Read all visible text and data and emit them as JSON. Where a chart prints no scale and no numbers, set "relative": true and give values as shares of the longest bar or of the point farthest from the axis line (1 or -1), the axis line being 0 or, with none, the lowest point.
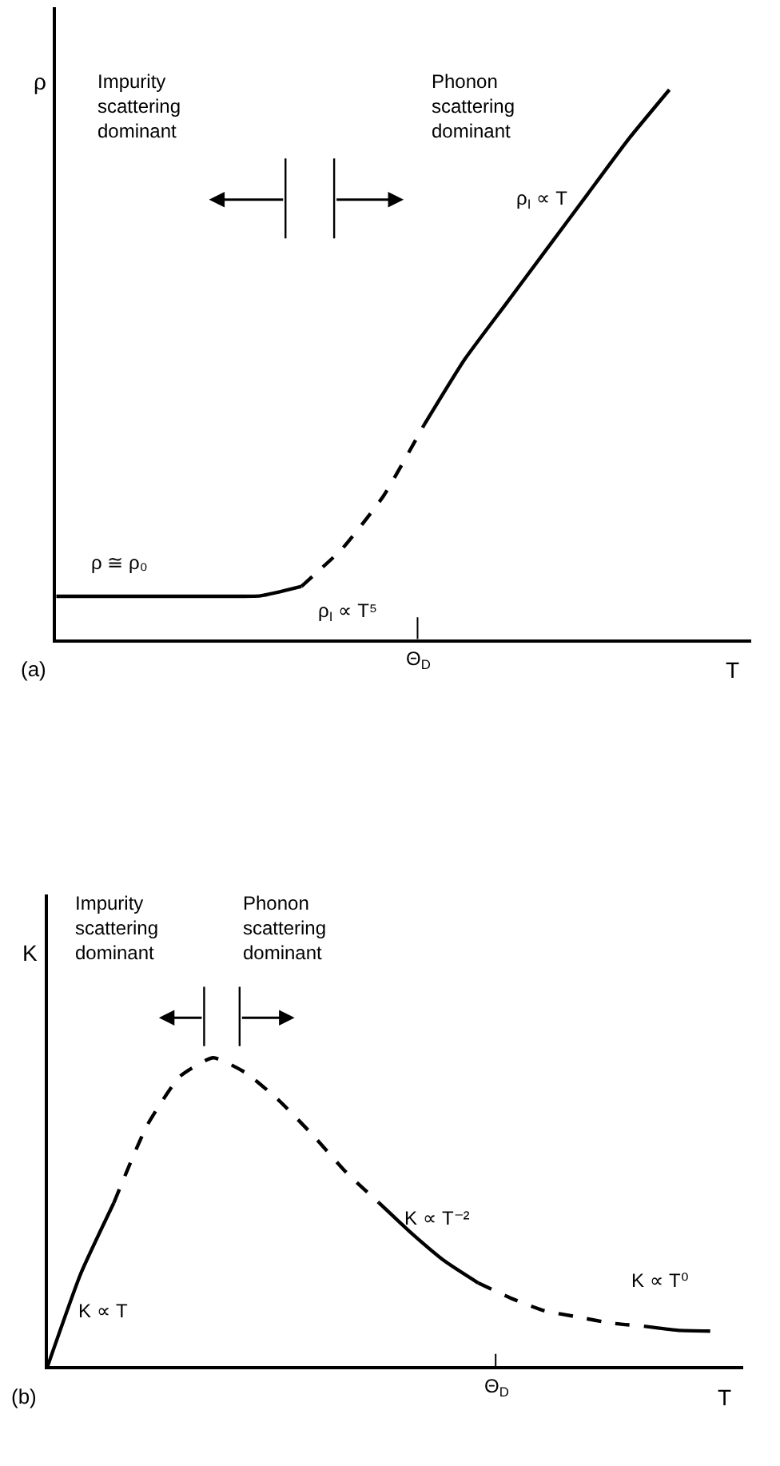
{
  "chart_data": [
    {
      "type": "line",
      "relative": true,
      "xlabel": "T",
      "ylabel": "ρ",
      "marker": "none",
      "categories": [
        null,
        null,
        null,
        null,
        null,
        null,
        null,
        null,
        null,
        null,
        null,
        null,
        null,
        null,
        null,
        null,
        null,
        null
      ],
      "series": [
        {
          "color": "#000000",
          "line_style": "solid",
          "values": [
            0.078,
            0.078,
            0.078,
            0.078,
            0.078,
            0.079,
            0.096,
            null,
            null,
            null,
            null,
            null,
            null,
            null,
            null,
            null,
            null,
            null
          ]
        },
        {
          "color": "#000000",
          "line_style": "dashed",
          "values": [
            null,
            null,
            null,
            null,
            null,
            null,
            0.096,
            0.165,
            0.26,
            0.39,
            null,
            null,
            null,
            null,
            null,
            null,
            null,
            null
          ]
        },
        {
          "color": "#000000",
          "line_style": "solid",
          "values": [
            null,
            null,
            null,
            null,
            null,
            null,
            null,
            null,
            null,
            0.39,
            0.51,
            0.61,
            0.71,
            0.81,
            0.91,
            1.0,
            null,
            null
          ]
        }
      ],
      "annotations": [
        "Impurity\nscattering\ndominant",
        "Phonon\nscattering\ndominant",
        "ρ$_{I}$ ∝ T",
        "ρ ≅ ρ₀",
        "ρ$_{I}$ ∝ T⁵",
        "Θ$_{D}$",
        "(a)"
      ]
    },
    {
      "type": "line",
      "relative": true,
      "xlabel": "T",
      "ylabel": "K",
      "marker": "none",
      "categories": [
        null,
        null,
        null,
        null,
        null,
        null,
        null,
        null,
        null,
        null,
        null,
        null,
        null,
        null,
        null,
        null,
        null,
        null,
        null,
        null,
        null,
        null
      ],
      "series": [
        {
          "color": "#000000",
          "line_style": "solid",
          "values": [
            0,
            0.3,
            0.53,
            null,
            null,
            null,
            null,
            null,
            null,
            null,
            null,
            null,
            null,
            null,
            null,
            null,
            null,
            null,
            null,
            null,
            null,
            null
          ]
        },
        {
          "color": "#000000",
          "line_style": "dashed",
          "values": [
            null,
            null,
            0.53,
            0.78,
            0.94,
            1.0,
            0.95,
            0.86,
            0.75,
            0.63,
            0.53,
            null,
            null,
            null,
            null,
            null,
            null,
            null,
            null,
            null,
            null,
            null
          ]
        },
        {
          "color": "#000000",
          "line_style": "solid",
          "values": [
            null,
            null,
            null,
            null,
            null,
            null,
            null,
            null,
            null,
            null,
            0.53,
            0.43,
            0.34,
            0.27,
            null,
            null,
            null,
            null,
            null,
            null,
            null,
            null
          ]
        },
        {
          "color": "#000000",
          "line_style": "dashed",
          "values": [
            null,
            null,
            null,
            null,
            null,
            null,
            null,
            null,
            null,
            null,
            null,
            null,
            null,
            0.27,
            0.22,
            0.18,
            0.16,
            0.14,
            0.13,
            null,
            null,
            null
          ]
        },
        {
          "color": "#000000",
          "line_style": "solid",
          "values": [
            null,
            null,
            null,
            null,
            null,
            null,
            null,
            null,
            null,
            null,
            null,
            null,
            null,
            null,
            null,
            null,
            null,
            null,
            0.13,
            0.117,
            0.114,
            null
          ]
        }
      ],
      "annotations": [
        "Impurity\nscattering\ndominant",
        "Phonon\nscattering\ndominant",
        "K ∝ T",
        "K ∝ T⁻²",
        "K ∝ T⁰",
        "Θ$_{D}$",
        "(b)"
      ]
    }
  ]
}
